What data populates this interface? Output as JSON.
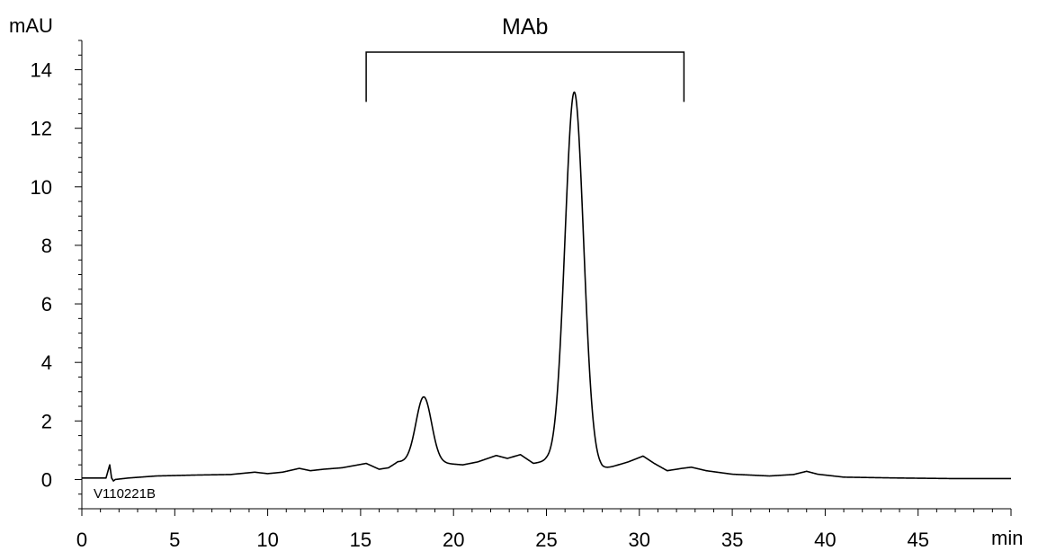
{
  "chart_data": {
    "type": "line",
    "title": "",
    "ylabel": "mAU",
    "xlabel": "min",
    "xlim": [
      0,
      50
    ],
    "ylim": [
      -1,
      15
    ],
    "x_ticks": [
      0,
      5,
      10,
      15,
      20,
      25,
      30,
      35,
      40,
      45
    ],
    "y_ticks": [
      0,
      2,
      4,
      6,
      8,
      10,
      12,
      14
    ],
    "grid": false,
    "legend": "none",
    "line_color": "#000000",
    "sample_id": "V110221B",
    "bracket": {
      "label": "MAb",
      "x_start": 15.3,
      "x_end": 32.4,
      "y_top": 14.6,
      "y_bottom": 12.9
    },
    "baseline_points": [
      [
        0,
        0.05
      ],
      [
        1.3,
        0.05
      ],
      [
        1.5,
        0.5
      ],
      [
        1.6,
        0.05
      ],
      [
        1.7,
        -0.05
      ],
      [
        1.8,
        0.0
      ],
      [
        2.5,
        0.05
      ],
      [
        4,
        0.12
      ],
      [
        6,
        0.15
      ],
      [
        8,
        0.17
      ],
      [
        9.3,
        0.25
      ],
      [
        10,
        0.2
      ],
      [
        10.8,
        0.25
      ],
      [
        11.7,
        0.38
      ],
      [
        12.3,
        0.3
      ],
      [
        13,
        0.35
      ],
      [
        14,
        0.4
      ],
      [
        15.3,
        0.55
      ],
      [
        16,
        0.35
      ],
      [
        16.5,
        0.4
      ],
      [
        17,
        0.6
      ],
      [
        19.5,
        0.55
      ],
      [
        20.5,
        0.5
      ],
      [
        21.3,
        0.6
      ],
      [
        22.3,
        0.82
      ],
      [
        22.9,
        0.72
      ],
      [
        23.6,
        0.85
      ],
      [
        24.3,
        0.55
      ],
      [
        25,
        0.62
      ],
      [
        28,
        0.35
      ],
      [
        28.6,
        0.45
      ],
      [
        29.4,
        0.6
      ],
      [
        30.2,
        0.8
      ],
      [
        30.8,
        0.55
      ],
      [
        31.5,
        0.3
      ],
      [
        32.3,
        0.38
      ],
      [
        32.8,
        0.42
      ],
      [
        33.6,
        0.3
      ],
      [
        35,
        0.18
      ],
      [
        37,
        0.12
      ],
      [
        38.3,
        0.17
      ],
      [
        39,
        0.28
      ],
      [
        39.6,
        0.18
      ],
      [
        41,
        0.08
      ],
      [
        44,
        0.05
      ],
      [
        47,
        0.03
      ],
      [
        50,
        0.03
      ]
    ],
    "peaks": [
      {
        "x": 18.4,
        "height": 2.25,
        "sigma": 0.42
      },
      {
        "x": 26.5,
        "height": 12.75,
        "sigma": 0.5
      }
    ]
  }
}
